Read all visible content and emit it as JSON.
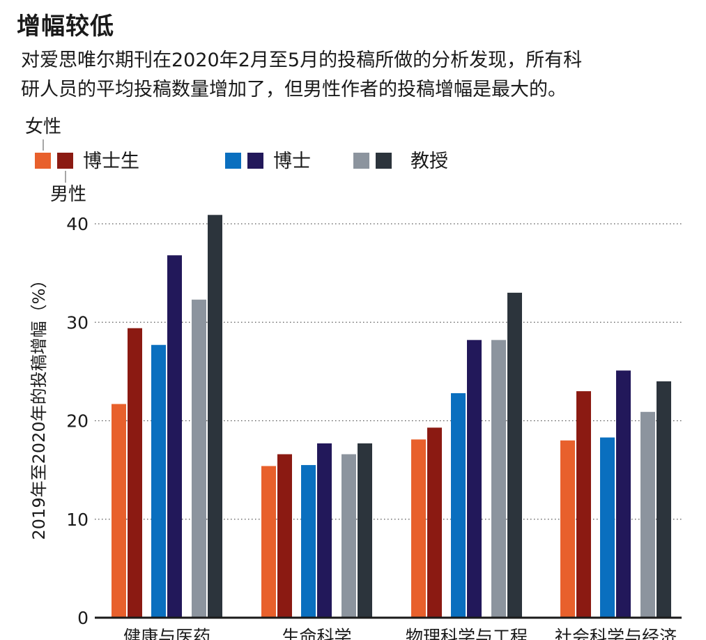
{
  "chart_data": {
    "type": "bar",
    "title": "增幅较低",
    "subtitle_lines": [
      "对爱思唯尔期刊在2020年2月至5月的投稿所做的分析发现，所有科",
      "研人员的平均投稿数量增加了，但男性作者的投稿增幅是最大的。"
    ],
    "ylabel": "2019年至2020年的投稿增幅（%）",
    "xlabel": "",
    "ylim": [
      0,
      40
    ],
    "yticks": [
      0,
      10,
      20,
      30,
      40
    ],
    "grid": true,
    "categories": [
      "健康与医药",
      "生命科学",
      "物理科学与工程",
      "社会科学与经济"
    ],
    "series": [
      {
        "name": "博士生 女性",
        "color": "#e8602c",
        "values": [
          21.7,
          15.4,
          18.1,
          18.0
        ]
      },
      {
        "name": "博士生 男性",
        "color": "#8b1a12",
        "values": [
          29.4,
          16.6,
          19.3,
          23.0
        ]
      },
      {
        "name": "博士 女性",
        "color": "#0a6fbf",
        "values": [
          27.7,
          15.5,
          22.8,
          18.3
        ]
      },
      {
        "name": "博士 男性",
        "color": "#22185a",
        "values": [
          36.8,
          17.7,
          28.2,
          25.1
        ]
      },
      {
        "name": "教授 女性",
        "color": "#8c949e",
        "values": [
          32.3,
          16.6,
          28.2,
          20.9
        ]
      },
      {
        "name": "教授 男性",
        "color": "#2c343c",
        "values": [
          40.9,
          17.7,
          33.0,
          24.0
        ]
      }
    ],
    "legend": {
      "groups": [
        "博士生",
        "博士",
        "教授"
      ],
      "female_label": "女性",
      "male_label": "男性",
      "placement": "top-left"
    }
  }
}
